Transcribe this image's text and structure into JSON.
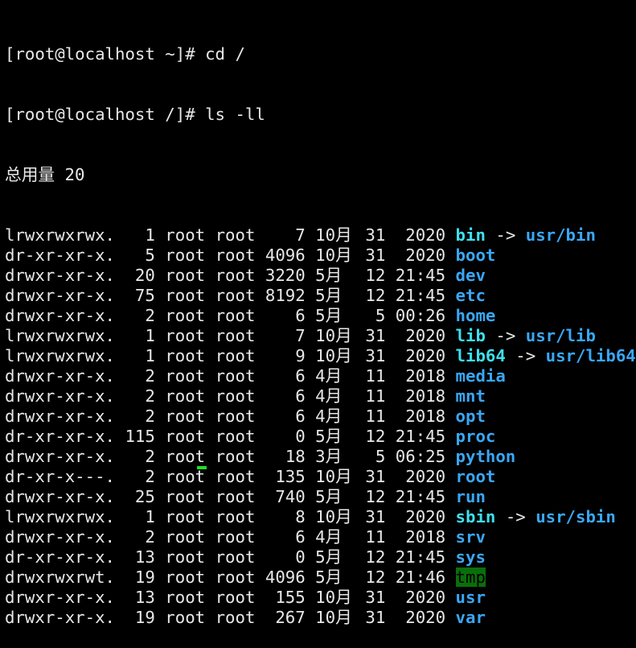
{
  "terminal": {
    "commands": [
      "[root@localhost ~]# cd /",
      "[root@localhost /]# ls -ll"
    ],
    "total": "总用量 20",
    "colors": {
      "directory": "#3aa7f5",
      "symlink": "#3ee0ee",
      "sticky_bg": "#0a6e0a",
      "text": "#e8e8e8",
      "cursor": "#22dd22"
    },
    "entries": [
      {
        "perms": "lrwxrwxrwx.",
        "links": "1",
        "owner": "root",
        "group": "root",
        "size": "7",
        "month": "10月",
        "day": "31",
        "time": "2020",
        "name": "bin",
        "type": "link",
        "target": "usr/bin"
      },
      {
        "perms": "dr-xr-xr-x.",
        "links": "5",
        "owner": "root",
        "group": "root",
        "size": "4096",
        "month": "10月",
        "day": "31",
        "time": "2020",
        "name": "boot",
        "type": "dir"
      },
      {
        "perms": "drwxr-xr-x.",
        "links": "20",
        "owner": "root",
        "group": "root",
        "size": "3220",
        "month": "5月",
        "day": "12",
        "time": "21:45",
        "name": "dev",
        "type": "dir"
      },
      {
        "perms": "drwxr-xr-x.",
        "links": "75",
        "owner": "root",
        "group": "root",
        "size": "8192",
        "month": "5月",
        "day": "12",
        "time": "21:45",
        "name": "etc",
        "type": "dir"
      },
      {
        "perms": "drwxr-xr-x.",
        "links": "2",
        "owner": "root",
        "group": "root",
        "size": "6",
        "month": "5月",
        "day": "5",
        "time": "00:26",
        "name": "home",
        "type": "dir"
      },
      {
        "perms": "lrwxrwxrwx.",
        "links": "1",
        "owner": "root",
        "group": "root",
        "size": "7",
        "month": "10月",
        "day": "31",
        "time": "2020",
        "name": "lib",
        "type": "link",
        "target": "usr/lib"
      },
      {
        "perms": "lrwxrwxrwx.",
        "links": "1",
        "owner": "root",
        "group": "root",
        "size": "9",
        "month": "10月",
        "day": "31",
        "time": "2020",
        "name": "lib64",
        "type": "link",
        "target": "usr/lib64"
      },
      {
        "perms": "drwxr-xr-x.",
        "links": "2",
        "owner": "root",
        "group": "root",
        "size": "6",
        "month": "4月",
        "day": "11",
        "time": "2018",
        "name": "media",
        "type": "dir"
      },
      {
        "perms": "drwxr-xr-x.",
        "links": "2",
        "owner": "root",
        "group": "root",
        "size": "6",
        "month": "4月",
        "day": "11",
        "time": "2018",
        "name": "mnt",
        "type": "dir"
      },
      {
        "perms": "drwxr-xr-x.",
        "links": "2",
        "owner": "root",
        "group": "root",
        "size": "6",
        "month": "4月",
        "day": "11",
        "time": "2018",
        "name": "opt",
        "type": "dir"
      },
      {
        "perms": "dr-xr-xr-x.",
        "links": "115",
        "owner": "root",
        "group": "root",
        "size": "0",
        "month": "5月",
        "day": "12",
        "time": "21:45",
        "name": "proc",
        "type": "dir"
      },
      {
        "perms": "drwxr-xr-x.",
        "links": "2",
        "owner": "root",
        "group": "root",
        "size": "18",
        "month": "3月",
        "day": "5",
        "time": "06:25",
        "name": "python",
        "type": "dir"
      },
      {
        "perms": "dr-xr-x---.",
        "links": "2",
        "owner": "root",
        "group": "root",
        "size": "135",
        "month": "10月",
        "day": "31",
        "time": "2020",
        "name": "root",
        "type": "dir"
      },
      {
        "perms": "drwxr-xr-x.",
        "links": "25",
        "owner": "root",
        "group": "root",
        "size": "740",
        "month": "5月",
        "day": "12",
        "time": "21:45",
        "name": "run",
        "type": "dir"
      },
      {
        "perms": "lrwxrwxrwx.",
        "links": "1",
        "owner": "root",
        "group": "root",
        "size": "8",
        "month": "10月",
        "day": "31",
        "time": "2020",
        "name": "sbin",
        "type": "link",
        "target": "usr/sbin"
      },
      {
        "perms": "drwxr-xr-x.",
        "links": "2",
        "owner": "root",
        "group": "root",
        "size": "6",
        "month": "4月",
        "day": "11",
        "time": "2018",
        "name": "srv",
        "type": "dir"
      },
      {
        "perms": "dr-xr-xr-x.",
        "links": "13",
        "owner": "root",
        "group": "root",
        "size": "0",
        "month": "5月",
        "day": "12",
        "time": "21:45",
        "name": "sys",
        "type": "dir"
      },
      {
        "perms": "drwxrwxrwt.",
        "links": "19",
        "owner": "root",
        "group": "root",
        "size": "4096",
        "month": "5月",
        "day": "12",
        "time": "21:46",
        "name": "tmp",
        "type": "sticky"
      },
      {
        "perms": "drwxr-xr-x.",
        "links": "13",
        "owner": "root",
        "group": "root",
        "size": "155",
        "month": "10月",
        "day": "31",
        "time": "2020",
        "name": "usr",
        "type": "dir"
      },
      {
        "perms": "drwxr-xr-x.",
        "links": "19",
        "owner": "root",
        "group": "root",
        "size": "267",
        "month": "10月",
        "day": "31",
        "time": "2020",
        "name": "var",
        "type": "dir"
      }
    ]
  }
}
